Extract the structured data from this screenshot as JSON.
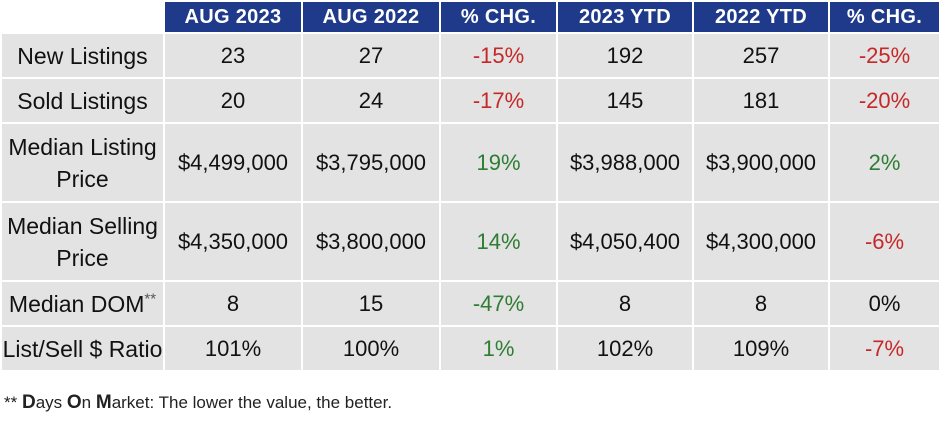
{
  "table": {
    "headers": [
      "",
      "AUG 2023",
      "AUG 2022",
      "% CHG.",
      "2023 YTD",
      "2022 YTD",
      "% CHG."
    ],
    "rows": [
      {
        "label": "New Listings",
        "aug2023": "23",
        "aug2022": "27",
        "chg": "-15%",
        "ytd2023": "192",
        "ytd2022": "257",
        "ytd_chg": "-25%"
      },
      {
        "label": "Sold Listings",
        "aug2023": "20",
        "aug2022": "24",
        "chg": "-17%",
        "ytd2023": "145",
        "ytd2022": "181",
        "ytd_chg": "-20%"
      },
      {
        "label": "Median Listing Price",
        "aug2023": "$4,499,000",
        "aug2022": "$3,795,000",
        "chg": "19%",
        "ytd2023": "$3,988,000",
        "ytd2022": "$3,900,000",
        "ytd_chg": "2%"
      },
      {
        "label": "Median Selling Price",
        "aug2023": "$4,350,000",
        "aug2022": "$3,800,000",
        "chg": "14%",
        "ytd2023": "$4,050,400",
        "ytd2022": "$4,300,000",
        "ytd_chg": "-6%"
      },
      {
        "label": "Median DOM",
        "label_mark": "**",
        "aug2023": "8",
        "aug2022": "15",
        "chg": "-47%",
        "ytd2023": "8",
        "ytd2022": "8",
        "ytd_chg": "0%"
      },
      {
        "label": "List/Sell $ Ratio",
        "aug2023": "101%",
        "aug2022": "100%",
        "chg": "1%",
        "ytd2023": "102%",
        "ytd2022": "109%",
        "ytd_chg": "-7%"
      }
    ]
  },
  "footnote": {
    "prefix": "** ",
    "d": "D",
    "ays": "ays ",
    "o": "O",
    "n": "n ",
    "m": "M",
    "arket": "arket: The lower the value, the better."
  },
  "colors": {
    "header_bg": "#1f3a8a",
    "cell_bg": "#e3e3e3",
    "negative": "#c62828",
    "positive": "#2e7d32"
  }
}
